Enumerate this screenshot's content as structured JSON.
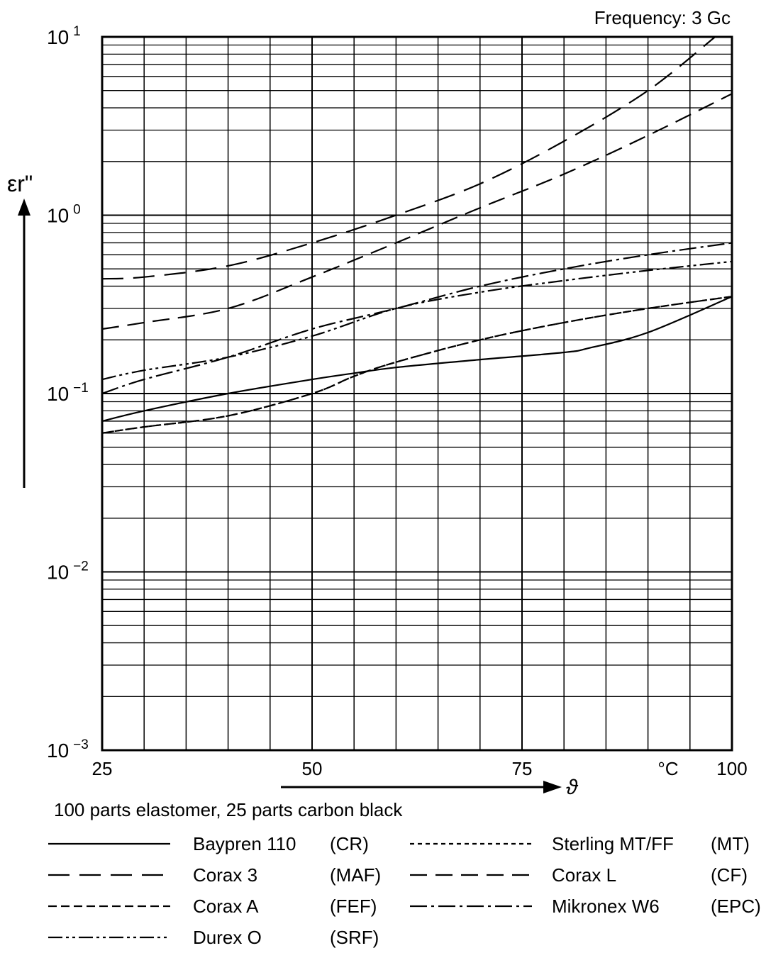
{
  "chart_data": {
    "type": "line",
    "annotation": "Frequency: 3 Gc",
    "ylabel": "εr\"",
    "xlabel": "ϑ",
    "x_unit": "°C",
    "subtitle": "100 parts elastomer, 25 parts carbon black",
    "xlim": [
      25,
      100
    ],
    "ylim": [
      0.001,
      10
    ],
    "y_scale": "log",
    "x_ticks": [
      {
        "value": 25,
        "label": "25"
      },
      {
        "value": 50,
        "label": "50"
      },
      {
        "value": 75,
        "label": "75"
      },
      {
        "value": 100,
        "label": "100"
      }
    ],
    "y_ticks": [
      {
        "value": 10,
        "base": "10",
        "exp": "1"
      },
      {
        "value": 1,
        "base": "10",
        "exp": "0"
      },
      {
        "value": 0.1,
        "base": "10",
        "exp": "−1"
      },
      {
        "value": 0.01,
        "base": "10",
        "exp": "−2"
      },
      {
        "value": 0.001,
        "base": "10",
        "exp": "−3"
      }
    ],
    "grid": true,
    "series": [
      {
        "name": "Baypren 110",
        "abbr": "(CR)",
        "dash": "solid",
        "x": [
          25,
          30,
          40,
          50,
          55,
          60,
          70,
          80,
          83,
          90,
          100
        ],
        "y": [
          0.07,
          0.08,
          0.1,
          0.12,
          0.13,
          0.14,
          0.155,
          0.17,
          0.18,
          0.22,
          0.35
        ]
      },
      {
        "name": "Corax 3",
        "abbr": "(MAF)",
        "dash": "long-dash",
        "x": [
          25,
          30,
          40,
          50,
          60,
          70,
          80,
          90,
          98
        ],
        "y": [
          0.44,
          0.45,
          0.52,
          0.7,
          1.0,
          1.5,
          2.6,
          5.0,
          10.0
        ]
      },
      {
        "name": "Corax A",
        "abbr": "(FEF)",
        "dash": "short-dash",
        "x": [
          25,
          30,
          40,
          50,
          55,
          60,
          70,
          80,
          90,
          100
        ],
        "y": [
          0.06,
          0.065,
          0.075,
          0.1,
          0.125,
          0.15,
          0.2,
          0.25,
          0.3,
          0.35
        ]
      },
      {
        "name": "Durex O",
        "abbr": "(SRF)",
        "dash": "dash-dot-dot",
        "x": [
          25,
          30,
          40,
          50,
          60,
          70,
          80,
          90,
          100
        ],
        "y": [
          0.12,
          0.135,
          0.16,
          0.21,
          0.3,
          0.37,
          0.43,
          0.49,
          0.55
        ]
      },
      {
        "name": "Sterling MT/FF",
        "abbr": "(MT)",
        "dash": "dotted",
        "x": [
          25,
          30,
          40,
          50,
          55,
          60,
          70,
          80,
          90,
          100
        ],
        "y": [
          0.06,
          0.065,
          0.075,
          0.1,
          0.125,
          0.15,
          0.2,
          0.25,
          0.3,
          0.35
        ]
      },
      {
        "name": "Corax L",
        "abbr": "(CF)",
        "dash": "medium-dash",
        "x": [
          25,
          30,
          40,
          50,
          60,
          70,
          80,
          90,
          100
        ],
        "y": [
          0.23,
          0.25,
          0.3,
          0.45,
          0.7,
          1.1,
          1.7,
          2.8,
          4.8
        ]
      },
      {
        "name": "Mikronex W6",
        "abbr": "(EPC)",
        "dash": "dash-dot",
        "x": [
          25,
          30,
          40,
          50,
          60,
          70,
          80,
          90,
          100
        ],
        "y": [
          0.1,
          0.12,
          0.16,
          0.23,
          0.3,
          0.4,
          0.5,
          0.6,
          0.7
        ]
      }
    ]
  }
}
